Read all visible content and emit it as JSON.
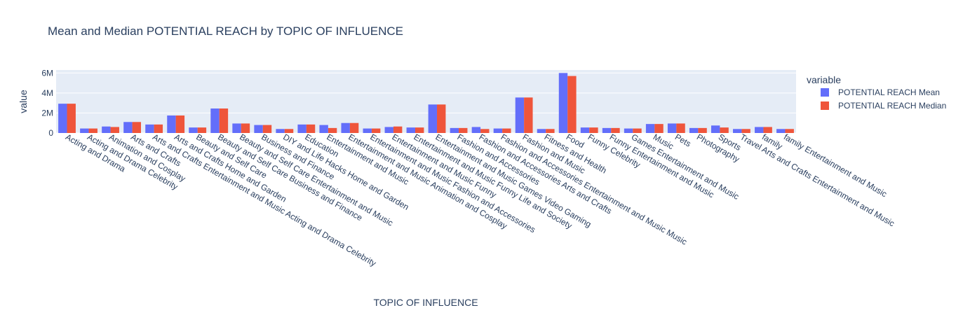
{
  "chart_data": {
    "type": "bar",
    "title": "Mean and Median POTENTIAL REACH by TOPIC OF INFLUENCE",
    "x_label": "TOPIC OF INFLUENCE",
    "y_label": "value",
    "legend_title": "variable",
    "categories": [
      "Acting and Drama",
      "Acting and Drama Celebrity",
      "Animation and Cosplay",
      "Arts and Crafts",
      "Arts and Crafts Entertainment and Music Acting and Drama Celebrity",
      "Arts and Crafts Home and Garden",
      "Beauty and Self Care",
      "Beauty and Self Care Business and Finance",
      "Beauty and Self Care Entertainment and Music",
      "Business and Finance",
      "DIY and Life Hacks Home and Garden",
      "Education",
      "Entertainment and Music",
      "Entertainment and Music Animation and Cosplay",
      "Entertainment and Music Fashion and Accessories",
      "Entertainment and Music Funny",
      "Entertainment and Music Funny Life and Society",
      "Entertainment and Music Games Video Gaming",
      "Fashion and Accessories",
      "Fashion and Accessories Arts and Crafts",
      "Fashion and Accessories Entertainment and Music Music",
      "Fashion and Music",
      "Fitness and Health",
      "Food",
      "Funny Celebrity",
      "Funny Entertainment and Music",
      "Games Entertainment and Music",
      "Music",
      "Pets",
      "Photography",
      "Sports",
      "Travel Arts and Crafts Entertainment and Music",
      "family",
      "family Entertainment and Music"
    ],
    "series": [
      {
        "name": "POTENTIAL REACH Mean",
        "color": "#636efa",
        "values": [
          2930000,
          450000,
          650000,
          1100000,
          850000,
          1750000,
          550000,
          2450000,
          950000,
          800000,
          400000,
          850000,
          800000,
          1000000,
          450000,
          600000,
          550000,
          2850000,
          500000,
          600000,
          450000,
          3550000,
          400000,
          6000000,
          550000,
          500000,
          450000,
          900000,
          950000,
          500000,
          750000,
          400000,
          600000,
          400000
        ]
      },
      {
        "name": "POTENTIAL REACH Median",
        "color": "#ef553b",
        "values": [
          2930000,
          450000,
          600000,
          1100000,
          850000,
          1750000,
          550000,
          2450000,
          950000,
          800000,
          400000,
          850000,
          500000,
          1000000,
          450000,
          650000,
          550000,
          2850000,
          500000,
          400000,
          450000,
          3550000,
          400000,
          5700000,
          550000,
          500000,
          450000,
          900000,
          950000,
          500000,
          550000,
          400000,
          600000,
          400000
        ]
      }
    ],
    "ylim": [
      0,
      6300000
    ],
    "yticks": [
      0,
      {
        "value": 2000000,
        "label": "2M"
      },
      {
        "value": 4000000,
        "label": "4M"
      },
      {
        "value": 6000000,
        "label": "6M"
      }
    ],
    "grid": true,
    "legend": "right"
  }
}
